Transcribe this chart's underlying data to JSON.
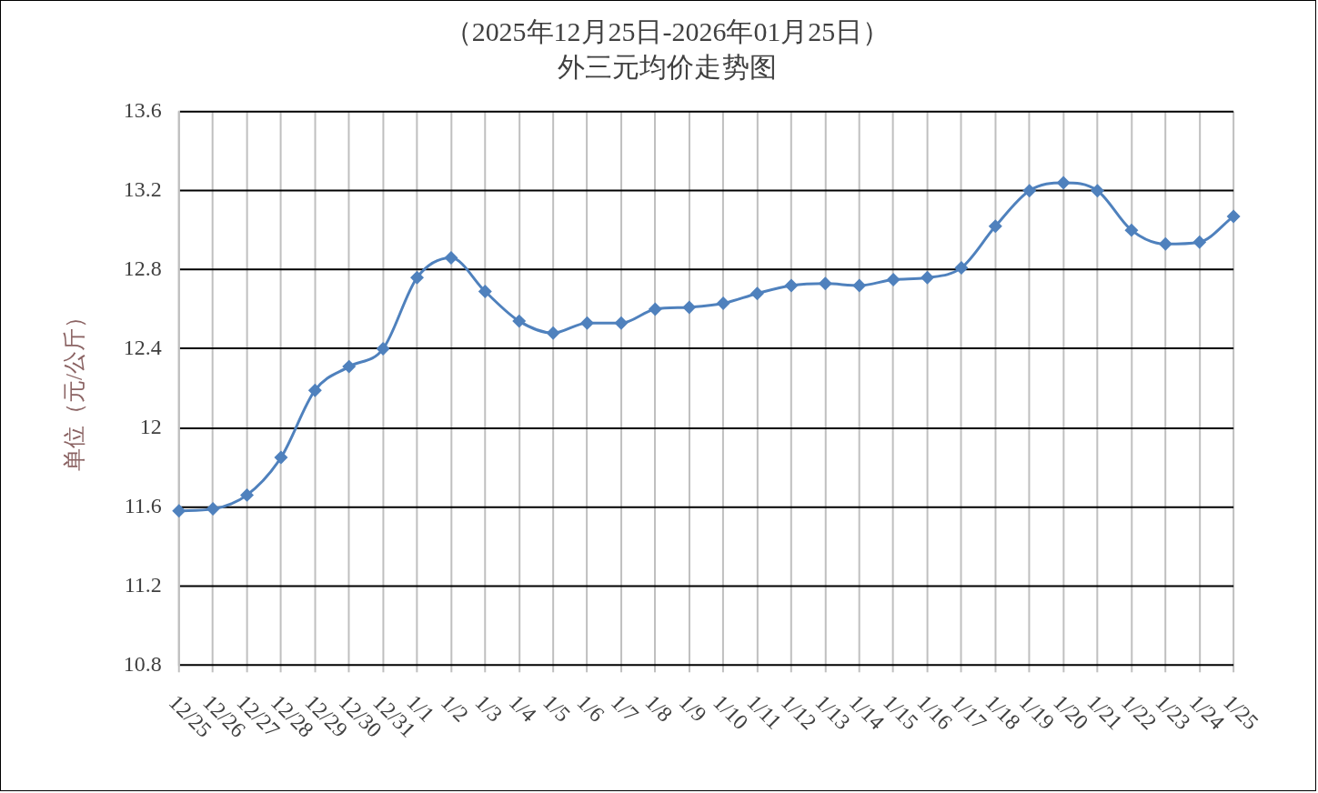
{
  "chart_data": {
    "type": "line",
    "title": "（2025年12月25日-2026年01月25日）",
    "subtitle": "外三元均价走势图",
    "ylabel": "单位（元/公斤）",
    "categories": [
      "12/25",
      "12/26",
      "12/27",
      "12/28",
      "12/29",
      "12/30",
      "12/31",
      "1/1",
      "1/2",
      "1/3",
      "1/4",
      "1/5",
      "1/6",
      "1/7",
      "1/8",
      "1/9",
      "1/10",
      "1/11",
      "1/12",
      "1/13",
      "1/14",
      "1/15",
      "1/16",
      "1/17",
      "1/18",
      "1/19",
      "1/20",
      "1/21",
      "1/22",
      "1/23",
      "1/24",
      "1/25"
    ],
    "values": [
      11.58,
      11.59,
      11.66,
      11.85,
      12.19,
      12.31,
      12.4,
      12.76,
      12.86,
      12.69,
      12.54,
      12.48,
      12.53,
      12.53,
      12.6,
      12.61,
      12.63,
      12.68,
      12.72,
      12.73,
      12.72,
      12.75,
      12.76,
      12.81,
      13.02,
      13.2,
      13.24,
      13.2,
      13.0,
      12.93,
      12.94,
      13.07
    ],
    "color": "#4f81bd",
    "ylim": [
      10.8,
      13.6
    ],
    "yticks": [
      10.8,
      11.2,
      11.6,
      12,
      12.4,
      12.8,
      13.2,
      13.6
    ],
    "grid": true,
    "marker": "diamond",
    "line_style": "solid"
  }
}
